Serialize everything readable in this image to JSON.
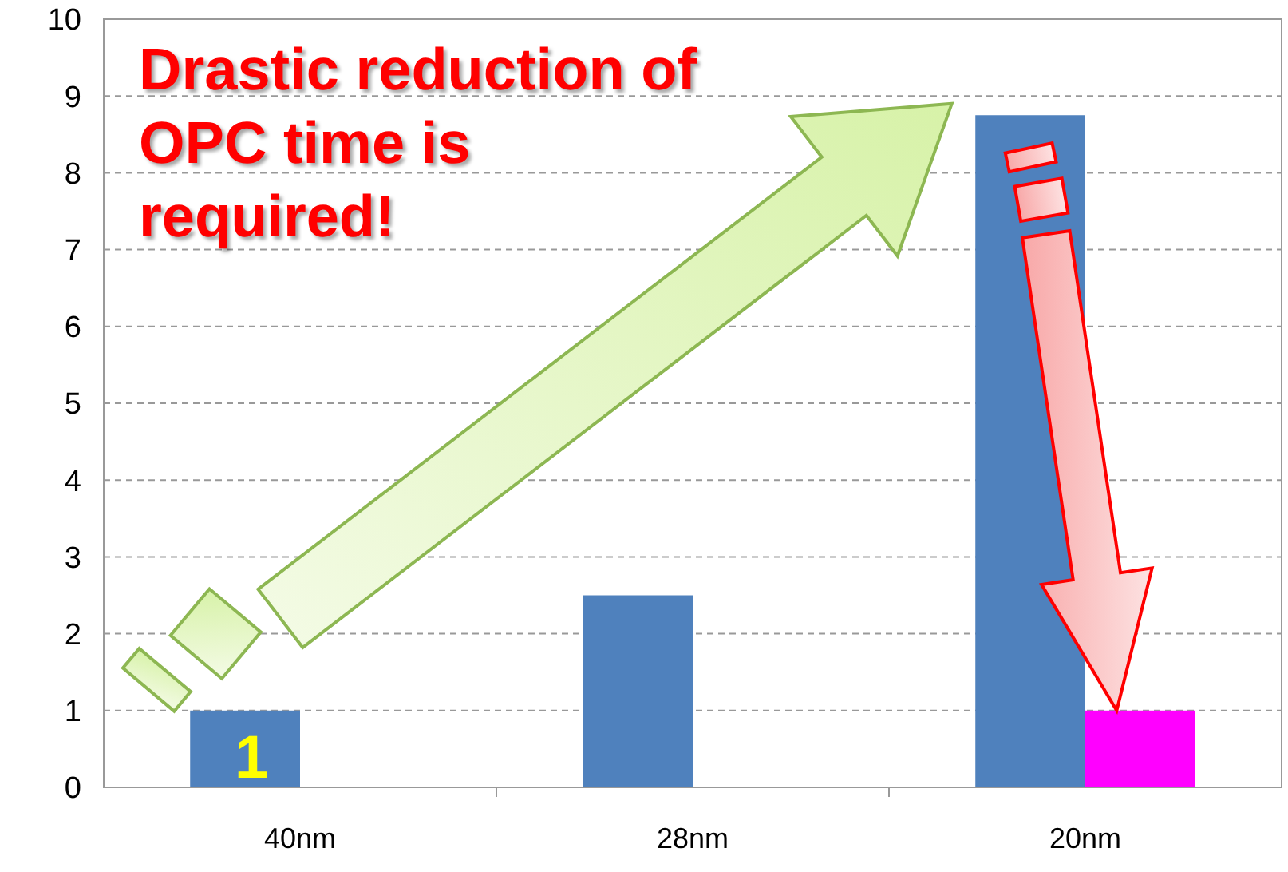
{
  "chart_data": {
    "type": "bar",
    "categories": [
      "40nm",
      "28nm",
      "20nm"
    ],
    "series": [
      {
        "color": "#4f81bd",
        "values": [
          1,
          2.5,
          8.75
        ],
        "value_labels": [
          "1",
          null,
          null
        ]
      },
      {
        "color": "#ff00ff",
        "values": [
          null,
          null,
          1
        ]
      }
    ],
    "ylim": [
      0,
      10
    ],
    "yticks": [
      0,
      1,
      2,
      3,
      4,
      5,
      6,
      7,
      8,
      9,
      10
    ],
    "grid": "y",
    "annotations": [
      "Drastic reduction of OPC time is required!"
    ]
  }
}
